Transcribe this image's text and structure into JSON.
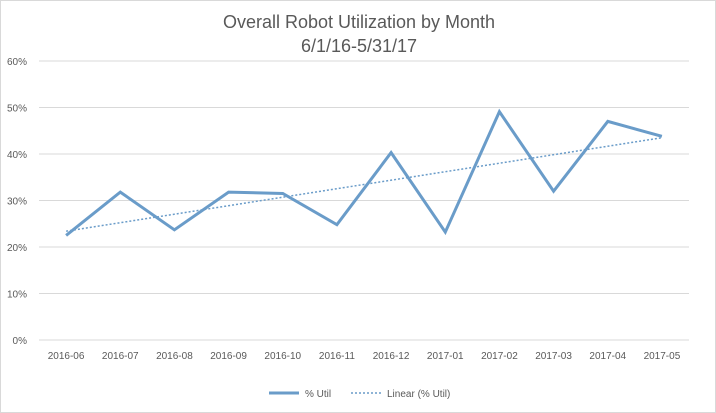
{
  "chart_data": {
    "type": "line",
    "title": "Overall Robot Utilization by Month",
    "subtitle": "6/1/16-5/31/17",
    "categories": [
      "2016-06",
      "2016-07",
      "2016-08",
      "2016-09",
      "2016-10",
      "2016-11",
      "2016-12",
      "2017-01",
      "2017-02",
      "2017-03",
      "2017-04",
      "2017-05"
    ],
    "series": [
      {
        "name": "% Util",
        "values": [
          22.5,
          31.8,
          23.7,
          31.8,
          31.5,
          24.8,
          40.3,
          23.2,
          49.1,
          32.0,
          47.0,
          43.8
        ],
        "color": "#6a9cc9",
        "style": "solid"
      }
    ],
    "trendline": {
      "name": "Linear (% Util)",
      "type": "linear",
      "start": 23.4,
      "end": 43.5,
      "color": "#6a9cc9",
      "style": "dotted"
    },
    "ylim": [
      0,
      60
    ],
    "ytick_values": [
      0,
      10,
      20,
      30,
      40,
      50,
      60
    ],
    "ytick_labels": [
      "0%",
      "10%",
      "20%",
      "30%",
      "40%",
      "50%",
      "60%"
    ],
    "xlabel": "",
    "ylabel": "",
    "grid": true,
    "gridline_color": "#d9d9d9",
    "legend_position": "bottom"
  }
}
